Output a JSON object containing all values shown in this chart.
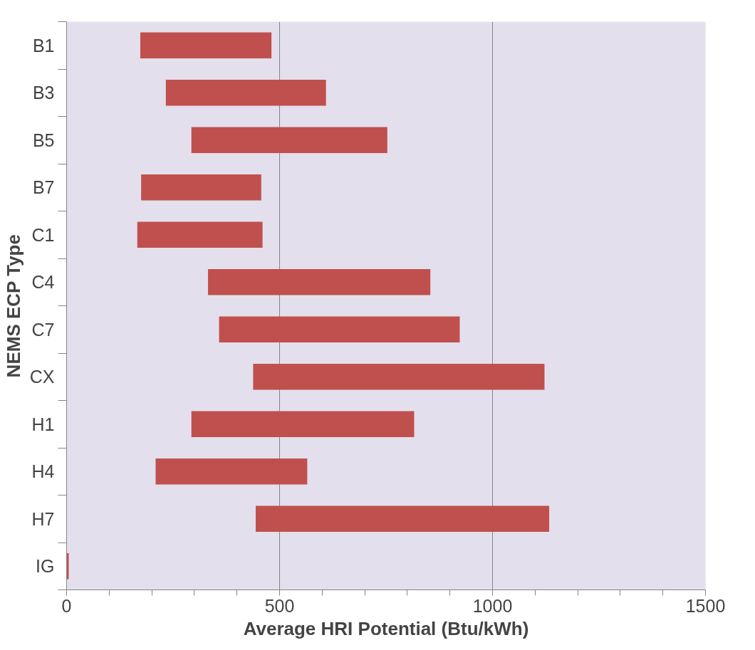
{
  "chart_data": {
    "type": "bar",
    "orientation": "horizontal",
    "xlabel": "Average HRI Potential (Btu/kWh)",
    "ylabel": "NEMS ECP Type",
    "categories": [
      "B1",
      "B3",
      "B5",
      "B7",
      "C1",
      "C4",
      "C7",
      "CX",
      "H1",
      "H4",
      "H7",
      "IG"
    ],
    "base": [
      173,
      233,
      293,
      175,
      166,
      332,
      358,
      438,
      293,
      209,
      444,
      0
    ],
    "values": [
      308,
      376,
      460,
      282,
      294,
      522,
      565,
      684,
      523,
      356,
      689,
      5
    ],
    "color": "#c0504d",
    "xlim": [
      0,
      1500
    ],
    "xticks": [
      0,
      500,
      1000,
      1500
    ],
    "grid": "x"
  }
}
